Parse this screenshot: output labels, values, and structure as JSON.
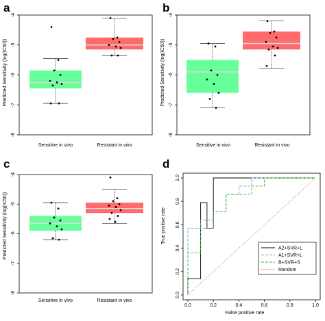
{
  "chart_data": [
    {
      "panel": "a",
      "type": "box",
      "ylabel": "Predicted Sensitivity (log(IC50))",
      "categories": [
        "Sensitive in vivo",
        "Resistant in vivo"
      ],
      "yticks": [
        -8,
        -7,
        -6,
        -5,
        -4
      ],
      "ylim": [
        -8,
        -4
      ],
      "colors": [
        "#66ff99",
        "#ff6b6b"
      ],
      "boxes": [
        {
          "whisker_low": -6.95,
          "q1": -6.45,
          "median": -6.25,
          "q3": -5.85,
          "whisker_high": -5.45
        },
        {
          "whisker_low": -5.35,
          "q1": -5.15,
          "median": -5.0,
          "q3": -4.75,
          "whisker_high": -4.1
        }
      ],
      "points": [
        [
          -4.4,
          -5.5,
          -5.85,
          -6.0,
          -6.2,
          -6.25,
          -6.3,
          -6.35,
          -6.95,
          -6.95
        ],
        [
          -4.1,
          -4.75,
          -4.8,
          -4.9,
          -5.0,
          -5.05,
          -5.1,
          -5.35,
          -5.35
        ]
      ]
    },
    {
      "panel": "b",
      "type": "box",
      "ylabel": "Predicted Sensitivity (log(IC50))",
      "categories": [
        "Sensitive in vivo",
        "Resistant in vivo"
      ],
      "yticks": [
        -8,
        -7,
        -6,
        -5,
        -4
      ],
      "ylim": [
        -8,
        -4
      ],
      "colors": [
        "#66ff99",
        "#ff6b6b"
      ],
      "boxes": [
        {
          "whisker_low": -7.1,
          "q1": -6.6,
          "median": -5.9,
          "q3": -5.5,
          "whisker_high": -4.95
        },
        {
          "whisker_low": -5.8,
          "q1": -5.15,
          "median": -4.95,
          "q3": -4.55,
          "whisker_high": -4.2
        }
      ],
      "points": [
        [
          -4.95,
          -5.05,
          -5.85,
          -6.0,
          -6.15,
          -6.3,
          -6.6,
          -6.8,
          -7.1
        ],
        [
          -4.2,
          -4.55,
          -4.6,
          -4.75,
          -4.9,
          -5.05,
          -5.1,
          -5.15,
          -5.35,
          -5.7
        ]
      ]
    },
    {
      "panel": "c",
      "type": "box",
      "ylabel": "Predicted Sensitivity (log(IC50))",
      "categories": [
        "Sensitive in vivo",
        "Resistant in vivo"
      ],
      "yticks": [
        -8,
        -7,
        -6,
        -5,
        -4
      ],
      "ylim": [
        -8,
        -4
      ],
      "colors": [
        "#66ff99",
        "#ff6b6b"
      ],
      "boxes": [
        {
          "whisker_low": -6.2,
          "q1": -5.9,
          "median": -5.65,
          "q3": -5.4,
          "whisker_high": -4.95
        },
        {
          "whisker_low": -5.65,
          "q1": -5.3,
          "median": -5.15,
          "q3": -4.95,
          "whisker_high": -4.5
        }
      ],
      "points": [
        [
          -4.95,
          -5.15,
          -5.45,
          -5.55,
          -5.65,
          -5.75,
          -5.85,
          -6.15,
          -6.2
        ],
        [
          -4.1,
          -4.8,
          -4.9,
          -5.0,
          -5.05,
          -5.1,
          -5.2,
          -5.3,
          -5.4,
          -5.5,
          -5.6
        ]
      ]
    },
    {
      "panel": "d",
      "type": "line",
      "xlabel": "False positive rate",
      "ylabel": "True positive rate",
      "xlim": [
        0,
        1
      ],
      "ylim": [
        0,
        1
      ],
      "xticks": [
        "0.0",
        "0.2",
        "0.4",
        "0.6",
        "0.8",
        "1.0"
      ],
      "yticks": [
        "0.0",
        "0.2",
        "0.4",
        "0.6",
        "0.8",
        "1.0"
      ],
      "legend_position": "bottom-right",
      "series": [
        {
          "name": "A2+SVR+L",
          "color": "#000000",
          "dash": "",
          "x": [
            0,
            0,
            0.1,
            0.1,
            0.15,
            0.15,
            0.2,
            0.2,
            0.5,
            1.0
          ],
          "y": [
            0,
            0.14,
            0.14,
            0.79,
            0.79,
            0.57,
            0.57,
            1.0,
            1.0,
            1.0
          ]
        },
        {
          "name": "A1+SVR+L",
          "color": "#4aa3df",
          "dash": "4,2",
          "x": [
            0,
            0,
            0.1,
            0.1,
            0.2,
            0.2,
            0.3,
            0.3,
            0.4,
            0.4,
            0.5,
            0.5,
            1.0
          ],
          "y": [
            0,
            0.57,
            0.57,
            0.64,
            0.64,
            0.71,
            0.71,
            0.86,
            0.86,
            0.93,
            0.93,
            1.0,
            1.0
          ]
        },
        {
          "name": "B+SVR+S",
          "color": "#2db82d",
          "dash": "4,2",
          "x": [
            0,
            0,
            0.1,
            0.1,
            0.2,
            0.2,
            0.3,
            0.3,
            0.5,
            0.5,
            0.6,
            0.6,
            1.0
          ],
          "y": [
            0,
            0.36,
            0.36,
            0.57,
            0.57,
            0.71,
            0.71,
            0.86,
            0.86,
            0.93,
            0.93,
            1.0,
            1.0
          ]
        },
        {
          "name": "Random",
          "color": "#f08080",
          "dash": "1.5,1.5",
          "x": [
            0,
            1.0
          ],
          "y": [
            0,
            1.0
          ]
        }
      ]
    }
  ]
}
